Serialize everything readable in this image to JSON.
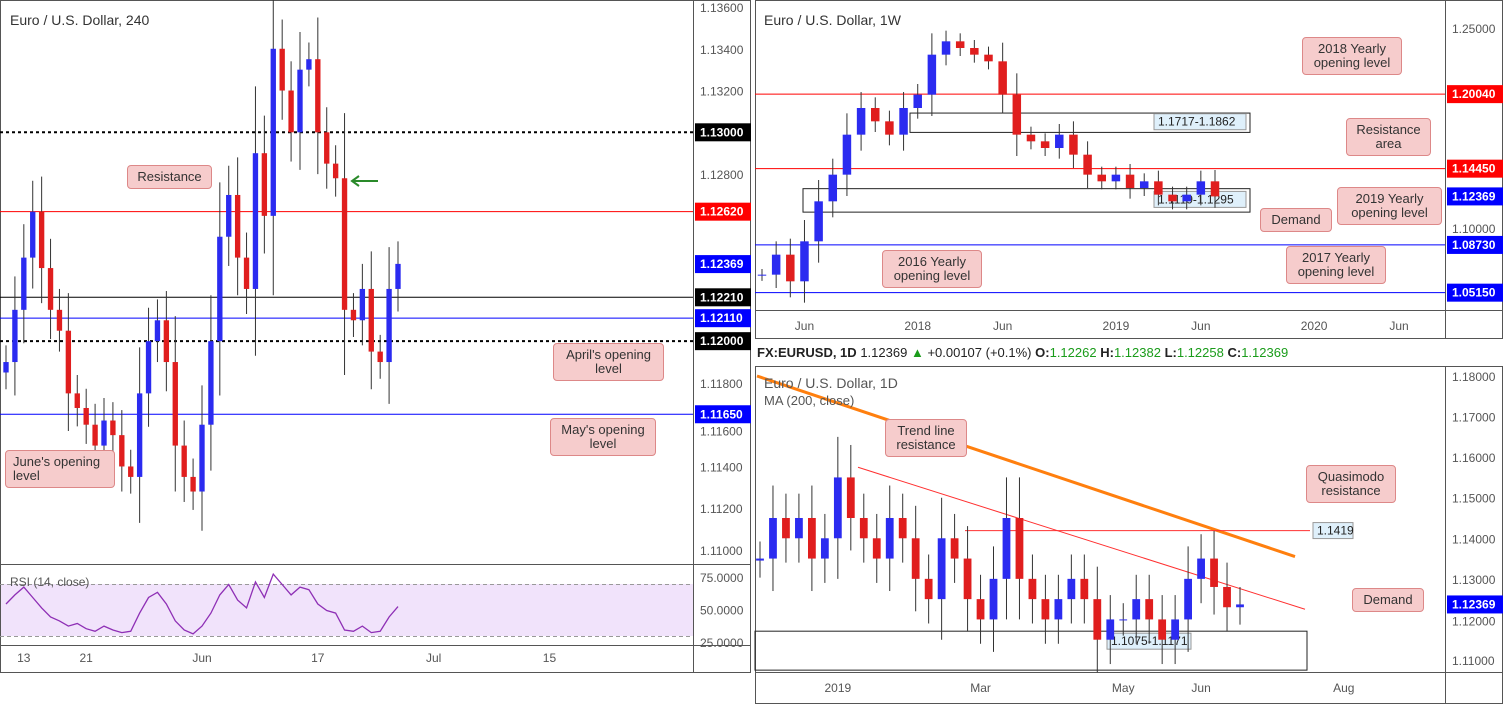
{
  "header": {
    "symbol": "FX:EURUSD, 1D",
    "price": "1.12369",
    "change": "+0.00107 (+0.1%)",
    "o_label": "O:",
    "o": "1.12262",
    "h_label": "H:",
    "h": "1.12382",
    "l_label": "L:",
    "l": "1.12258",
    "c_label": "C:",
    "c": "1.12369"
  },
  "colors": {
    "up": "#2b2bf0",
    "down": "#e01e1e",
    "red_level": "#ff0000",
    "blue_level": "#0000ff",
    "ma": "#ff7f0e",
    "callout": "#f6cccc"
  },
  "chart_data": [
    {
      "type": "candlestick",
      "title": "Euro / U.S. Dollar, 240",
      "ylim": [
        1.1085,
        1.1362
      ],
      "yticks": [
        "1.13600",
        "1.13400",
        "1.13200",
        "1.12800",
        "1.11800",
        "1.11600",
        "1.11400",
        "1.11200",
        "1.11000"
      ],
      "ytick_values": [
        1.136,
        1.134,
        1.132,
        1.128,
        1.118,
        1.116,
        1.114,
        1.112,
        1.11
      ],
      "xticks": [
        {
          "label": "13",
          "i": 2
        },
        {
          "label": "21",
          "i": 9
        },
        {
          "label": "Jun",
          "i": 22
        },
        {
          "label": "17",
          "i": 35
        },
        {
          "label": "Jul",
          "i": 48
        },
        {
          "label": "15",
          "i": 61
        }
      ],
      "closes": [
        1.119,
        1.1215,
        1.124,
        1.1262,
        1.1235,
        1.1215,
        1.1205,
        1.1175,
        1.1168,
        1.116,
        1.115,
        1.1162,
        1.1155,
        1.114,
        1.1135,
        1.1175,
        1.12,
        1.121,
        1.119,
        1.115,
        1.1135,
        1.1128,
        1.116,
        1.12,
        1.125,
        1.127,
        1.124,
        1.1225,
        1.129,
        1.126,
        1.134,
        1.132,
        1.13,
        1.133,
        1.1335,
        1.13,
        1.1285,
        1.1278,
        1.1215,
        1.121,
        1.1225,
        1.1195,
        1.119,
        1.1225,
        1.1237
      ],
      "levels": [
        {
          "value": 1.13,
          "label": "1.13000",
          "color": "#000000",
          "style": "dotted"
        },
        {
          "value": 1.1262,
          "label": "1.12620",
          "color": "#ff0000",
          "style": "solid"
        },
        {
          "value": 1.12369,
          "label": "1.12369",
          "color": "#0000ff",
          "style": "none"
        },
        {
          "value": 1.1221,
          "label": "1.12210",
          "color": "#000000",
          "style": "solid"
        },
        {
          "value": 1.1211,
          "label": "1.12110",
          "color": "#0000ff",
          "style": "solid"
        },
        {
          "value": 1.12,
          "label": "1.12000",
          "color": "#000000",
          "style": "dotted"
        },
        {
          "value": 1.1165,
          "label": "1.11650",
          "color": "#0000ff",
          "style": "solid"
        }
      ],
      "annotations": [
        "Resistance",
        "April's opening level",
        "May's opening level",
        "June's opening level"
      ],
      "rsi": {
        "label": "RSI (14, close)",
        "yticks": [
          "75.0000",
          "50.0000",
          "25.0000"
        ],
        "ytick_values": [
          75,
          50,
          25
        ],
        "band": [
          30,
          70
        ],
        "values": [
          55,
          62,
          68,
          60,
          52,
          45,
          42,
          38,
          40,
          36,
          34,
          38,
          35,
          33,
          34,
          48,
          60,
          64,
          55,
          42,
          35,
          32,
          38,
          48,
          62,
          70,
          58,
          52,
          72,
          60,
          78,
          70,
          62,
          68,
          66,
          55,
          50,
          48,
          35,
          34,
          38,
          33,
          34,
          45,
          53
        ]
      }
    },
    {
      "type": "candlestick",
      "title": "Euro / U.S. Dollar, 1W",
      "ylim": [
        1.035,
        1.27
      ],
      "yticks": [
        "1.25000",
        "1.10000"
      ],
      "ytick_values": [
        1.25,
        1.1
      ],
      "xticks": [
        {
          "label": "Jun",
          "i": 3
        },
        {
          "label": "2018",
          "i": 11
        },
        {
          "label": "Jun",
          "i": 17
        },
        {
          "label": "2019",
          "i": 25
        },
        {
          "label": "Jun",
          "i": 31
        },
        {
          "label": "2020",
          "i": 39
        },
        {
          "label": "Jun",
          "i": 45
        }
      ],
      "closes": [
        1.065,
        1.08,
        1.06,
        1.09,
        1.12,
        1.14,
        1.17,
        1.19,
        1.18,
        1.17,
        1.19,
        1.2,
        1.23,
        1.24,
        1.235,
        1.23,
        1.225,
        1.2,
        1.17,
        1.165,
        1.16,
        1.17,
        1.155,
        1.14,
        1.135,
        1.14,
        1.13,
        1.135,
        1.125,
        1.12,
        1.125,
        1.135,
        1.1237
      ],
      "levels": [
        {
          "value": 1.2004,
          "label": "1.20040",
          "color": "#ff0000"
        },
        {
          "value": 1.1445,
          "label": "1.14450",
          "color": "#ff0000"
        },
        {
          "value": 1.12369,
          "label": "1.12369",
          "color": "#0000ff",
          "style": "none"
        },
        {
          "value": 1.0873,
          "label": "1.08730",
          "color": "#0000ff"
        },
        {
          "value": 1.0515,
          "label": "1.05150",
          "color": "#0000ff"
        }
      ],
      "zones": [
        {
          "label": "1.1717-1.1862",
          "low": 1.1717,
          "high": 1.1862
        },
        {
          "label": "1.1119-1.1295",
          "low": 1.1119,
          "high": 1.1295
        }
      ],
      "annotations": [
        "2018 Yearly opening level",
        "Resistance area",
        "2019 Yearly opening level",
        "Demand",
        "2016 Yearly opening level",
        "2017 Yearly opening level"
      ]
    },
    {
      "type": "candlestick",
      "title": "Euro / U.S. Dollar, 1D",
      "indicator": "MA (200, close)",
      "ylim": [
        1.1045,
        1.1815
      ],
      "yticks": [
        "1.18000",
        "1.17000",
        "1.16000",
        "1.15000",
        "1.14000",
        "1.13000",
        "1.12000",
        "1.11000"
      ],
      "ytick_values": [
        1.18,
        1.17,
        1.16,
        1.15,
        1.14,
        1.13,
        1.12,
        1.11
      ],
      "xticks": [
        {
          "label": "2019",
          "i": 6
        },
        {
          "label": "Mar",
          "i": 17
        },
        {
          "label": "May",
          "i": 28
        },
        {
          "label": "Jun",
          "i": 34
        },
        {
          "label": "Aug",
          "i": 45
        }
      ],
      "closes": [
        1.135,
        1.145,
        1.14,
        1.145,
        1.135,
        1.14,
        1.155,
        1.145,
        1.14,
        1.135,
        1.145,
        1.14,
        1.13,
        1.125,
        1.14,
        1.135,
        1.125,
        1.12,
        1.13,
        1.145,
        1.13,
        1.125,
        1.12,
        1.125,
        1.13,
        1.125,
        1.115,
        1.12,
        1.12,
        1.125,
        1.12,
        1.115,
        1.12,
        1.13,
        1.135,
        1.128,
        1.123,
        1.1237
      ],
      "ma": [
        1.18,
        1.1355
      ],
      "trendline": [
        1.1575,
        1.1225
      ],
      "levels": [
        {
          "value": 1.12369,
          "label": "1.12369",
          "color": "#0000ff",
          "style": "none"
        }
      ],
      "quasimodo": {
        "value": 1.1419,
        "label": "1.1419"
      },
      "zones": [
        {
          "label": "1.1075-1.1171",
          "low": 1.1075,
          "high": 1.1171
        }
      ],
      "annotations": [
        "Trend line resistance",
        "Quasimodo resistance",
        "Demand"
      ]
    }
  ]
}
